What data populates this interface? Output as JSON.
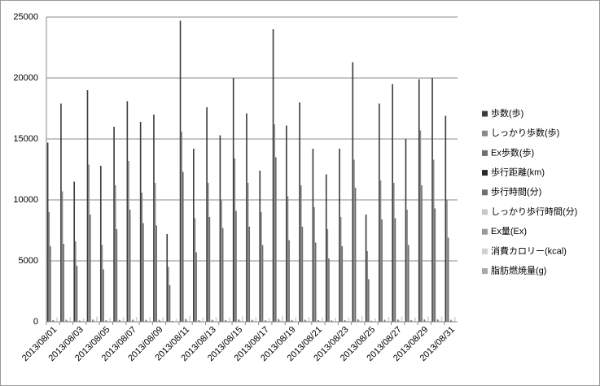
{
  "chart_data": {
    "type": "bar",
    "categories": [
      "2013/08/01",
      null,
      "2013/08/03",
      null,
      "2013/08/05",
      null,
      "2013/08/07",
      null,
      "2013/08/09",
      null,
      "2013/08/11",
      null,
      "2013/08/13",
      null,
      "2013/08/15",
      null,
      "2013/08/17",
      null,
      "2013/08/19",
      null,
      "2013/08/21",
      null,
      "2013/08/23",
      null,
      "2013/08/25",
      null,
      "2013/08/27",
      null,
      "2013/08/29",
      null,
      "2013/08/31"
    ],
    "series": [
      {
        "name": "歩数(歩)",
        "color": "#3c3c3c",
        "values": [
          14700,
          17900,
          11500,
          19000,
          12800,
          16000,
          18100,
          16400,
          17000,
          7200,
          24700,
          14200,
          17600,
          15300,
          20000,
          17100,
          12400,
          24000,
          16100,
          18000,
          14200,
          12100,
          14200,
          21300,
          8800,
          17900,
          19500,
          15000,
          19900,
          20000,
          16900
        ]
      },
      {
        "name": "しっかり歩数(歩)",
        "color": "#8a8a8a",
        "values": [
          9000,
          10700,
          6600,
          12900,
          6300,
          11200,
          13200,
          10600,
          11400,
          4500,
          15600,
          8500,
          11400,
          10000,
          13400,
          11400,
          9000,
          16200,
          10300,
          11200,
          9400,
          7600,
          8600,
          13300,
          5800,
          11600,
          11400,
          9200,
          15700,
          13300,
          10000
        ]
      },
      {
        "name": "Ex歩数(歩)",
        "color": "#6e6e6e",
        "values": [
          6200,
          6400,
          4600,
          8800,
          4300,
          7600,
          9200,
          8100,
          7900,
          3000,
          12300,
          5700,
          8600,
          7700,
          9100,
          7800,
          6300,
          13500,
          6700,
          7800,
          6500,
          5200,
          6200,
          11000,
          3500,
          8400,
          8500,
          6300,
          11200,
          9300,
          6900
        ]
      },
      {
        "name": "歩行距離(km)",
        "color": "#2a2a2a",
        "values": [
          9.6,
          11.6,
          7.5,
          12.4,
          8.3,
          10.4,
          11.8,
          10.7,
          11.1,
          4.7,
          16.1,
          9.2,
          11.4,
          10.0,
          13.0,
          11.1,
          8.1,
          15.6,
          10.5,
          11.7,
          9.2,
          7.9,
          9.2,
          13.8,
          5.7,
          11.6,
          12.7,
          9.8,
          12.9,
          13.0,
          11.0
        ]
      },
      {
        "name": "歩行時間(分)",
        "color": "#707070",
        "values": [
          142,
          171,
          110,
          182,
          121,
          153,
          173,
          156,
          162,
          69,
          236,
          135,
          168,
          146,
          191,
          163,
          118,
          229,
          154,
          172,
          135,
          115,
          135,
          203,
          84,
          171,
          186,
          143,
          190,
          191,
          161
        ]
      },
      {
        "name": "しっかり歩行時間(分)",
        "color": "#c8c8c8",
        "values": [
          86,
          102,
          63,
          123,
          60,
          107,
          126,
          101,
          109,
          43,
          149,
          81,
          109,
          95,
          128,
          109,
          86,
          155,
          98,
          107,
          90,
          72,
          82,
          127,
          55,
          111,
          109,
          88,
          150,
          127,
          95
        ]
      },
      {
        "name": "Ex量(Ex)",
        "color": "#9a9a9a",
        "values": [
          2.1,
          2.2,
          1.6,
          3.0,
          1.5,
          2.6,
          3.2,
          2.8,
          2.7,
          1.0,
          4.3,
          2.0,
          3.0,
          2.7,
          3.1,
          2.7,
          2.2,
          4.7,
          2.3,
          2.7,
          2.2,
          1.8,
          2.1,
          3.8,
          1.2,
          2.9,
          2.9,
          2.2,
          3.9,
          3.2,
          2.4
        ]
      },
      {
        "name": "消費カロリー(kcal)",
        "color": "#d0d0d0",
        "values": [
          352,
          398,
          301,
          425,
          322,
          372,
          410,
          378,
          388,
          256,
          505,
          345,
          400,
          362,
          438,
          390,
          318,
          490,
          375,
          404,
          344,
          315,
          344,
          458,
          276,
          398,
          428,
          357,
          434,
          436,
          384
        ]
      },
      {
        "name": "脂肪燃焼量(g)",
        "color": "#a8a8a8",
        "values": [
          22,
          27,
          18,
          30,
          19,
          25,
          28,
          26,
          26,
          12,
          38,
          21,
          27,
          23,
          31,
          27,
          19,
          37,
          24,
          27,
          21,
          18,
          21,
          32,
          14,
          27,
          29,
          23,
          30,
          31,
          26
        ]
      }
    ],
    "ylim": [
      0,
      25000
    ],
    "yticks": [
      0,
      5000,
      10000,
      15000,
      20000,
      25000
    ],
    "grid": true,
    "legend": "right"
  }
}
